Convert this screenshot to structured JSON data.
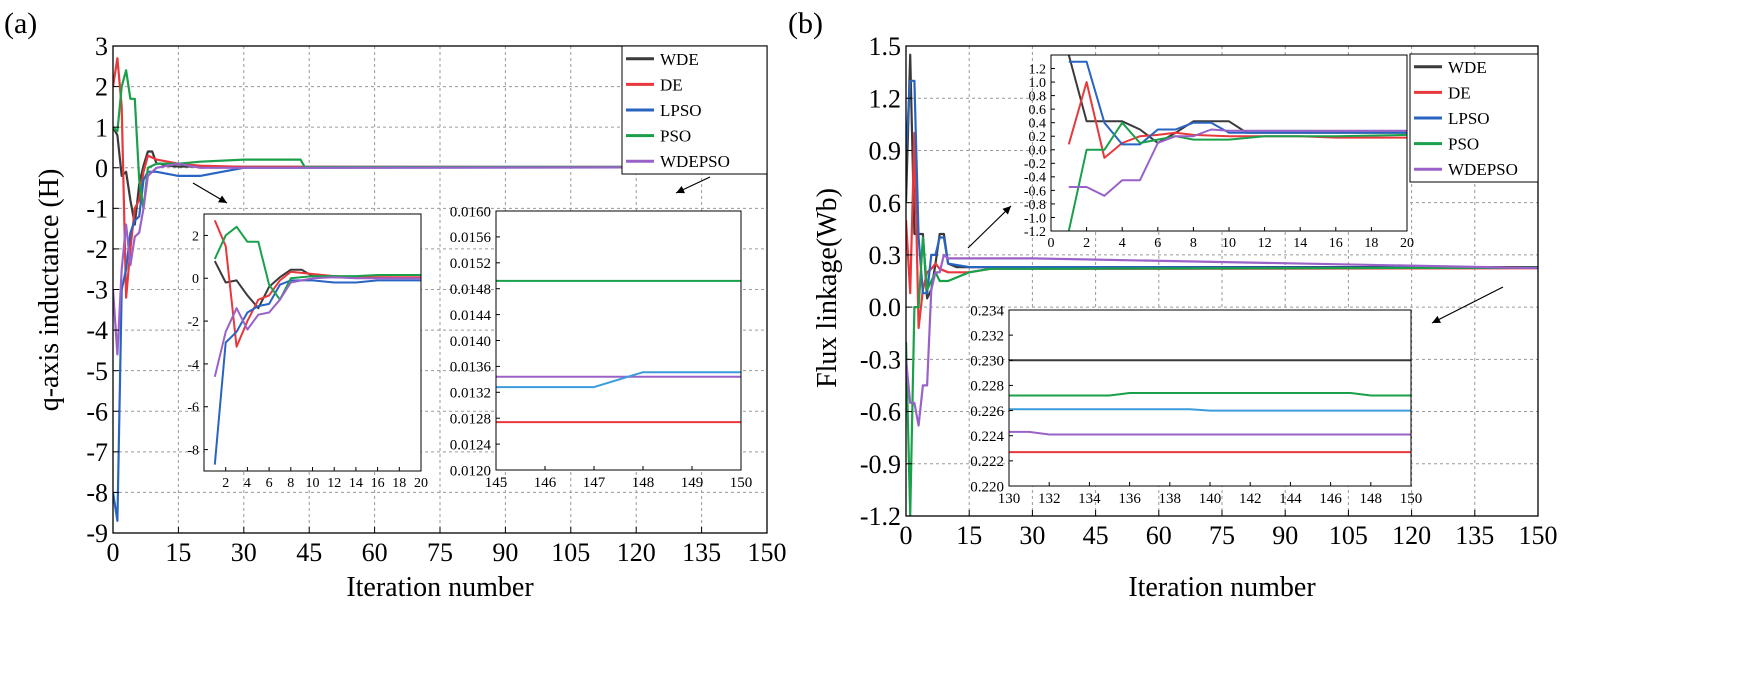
{
  "figure": {
    "colors": {
      "WDE": "#3a3a3a",
      "DE": "#e8383b",
      "LPSO": "#2a64c2",
      "PSO": "#1aa04a",
      "WDEPSO": "#9a62c8",
      "LPSO_inset": "#3b9cdb"
    }
  },
  "chart_data": [
    {
      "type": "line",
      "panel_label": "(a)",
      "xlabel": "Iteration number",
      "ylabel": "q-axis inductance (H)",
      "xlim": [
        0,
        150
      ],
      "ylim": [
        -9,
        3
      ],
      "xticks": [
        "0",
        "15",
        "30",
        "45",
        "60",
        "75",
        "90",
        "105",
        "120",
        "135",
        "150"
      ],
      "yticks": [
        "3",
        "2",
        "1",
        "0",
        "-1",
        "-2",
        "-3",
        "-4",
        "-5",
        "-6",
        "-7",
        "-8",
        "-9"
      ],
      "grid": true,
      "legend_position": "top-right",
      "series": [
        {
          "name": "WDE",
          "x": [
            0,
            1,
            2,
            3,
            4,
            5,
            6,
            7,
            8,
            9,
            10,
            11,
            12,
            15,
            20,
            30,
            150
          ],
          "y": [
            1.0,
            0.8,
            -0.2,
            -0.1,
            -0.8,
            -1.4,
            -0.4,
            0.05,
            0.4,
            0.4,
            0.1,
            0.1,
            0.05,
            0.03,
            0.03,
            0.02,
            0.02
          ]
        },
        {
          "name": "DE",
          "x": [
            0,
            1,
            2,
            3,
            4,
            5,
            6,
            7,
            8,
            10,
            15,
            20,
            30,
            150
          ],
          "y": [
            2.0,
            2.7,
            1.5,
            -3.2,
            -2.0,
            -1.0,
            -0.8,
            -0.1,
            0.3,
            0.2,
            0.1,
            0.05,
            0.02,
            0.013
          ]
        },
        {
          "name": "LPSO",
          "x": [
            0,
            1,
            2,
            3,
            4,
            5,
            6,
            7,
            8,
            10,
            15,
            20,
            25,
            30,
            40,
            150
          ],
          "y": [
            -8.0,
            -8.7,
            -3.0,
            -2.5,
            -1.6,
            -1.3,
            -1.2,
            -0.3,
            -0.1,
            -0.1,
            -0.2,
            -0.2,
            -0.1,
            0.0,
            0.0,
            0.013
          ]
        },
        {
          "name": "PSO",
          "x": [
            0,
            1,
            2,
            3,
            4,
            5,
            6,
            7,
            8,
            10,
            15,
            20,
            30,
            40,
            43,
            44,
            150
          ],
          "y": [
            1.0,
            0.9,
            2.0,
            2.4,
            1.7,
            1.7,
            -0.3,
            -1.0,
            0.0,
            0.1,
            0.1,
            0.15,
            0.2,
            0.2,
            0.2,
            0.015,
            0.015
          ]
        },
        {
          "name": "WDEPSO",
          "x": [
            0,
            1,
            2,
            3,
            4,
            5,
            6,
            7,
            8,
            9,
            10,
            15,
            20,
            30,
            150
          ],
          "y": [
            -3.0,
            -4.6,
            -2.5,
            -1.4,
            -2.4,
            -1.7,
            -1.6,
            -1.0,
            -0.2,
            -0.1,
            0.0,
            0.1,
            0.0,
            0.0,
            0.013
          ]
        }
      ],
      "insets": [
        {
          "xlim": [
            0,
            20
          ],
          "ylim": [
            -9,
            3
          ],
          "xticks": [
            "2",
            "4",
            "6",
            "8",
            "10",
            "12",
            "14",
            "16",
            "18",
            "20"
          ],
          "yticks": [
            "2",
            "0",
            "-2",
            "-4",
            "-6",
            "-8"
          ],
          "series": [
            {
              "name": "WDE",
              "x": [
                1,
                2,
                3,
                4,
                5,
                6,
                7,
                8,
                9,
                10,
                11,
                12,
                20
              ],
              "y": [
                0.8,
                -0.2,
                -0.1,
                -0.8,
                -1.4,
                -0.4,
                0.05,
                0.4,
                0.4,
                0.1,
                0.1,
                0.05,
                0.03
              ]
            },
            {
              "name": "DE",
              "x": [
                1,
                2,
                3,
                4,
                5,
                6,
                7,
                8,
                10,
                12,
                14,
                16,
                20
              ],
              "y": [
                2.7,
                1.5,
                -3.2,
                -2.0,
                -1.0,
                -0.8,
                -0.1,
                0.3,
                0.2,
                0.1,
                0.05,
                0.05,
                0.05
              ]
            },
            {
              "name": "LPSO",
              "x": [
                1,
                2,
                3,
                4,
                5,
                6,
                7,
                8,
                10,
                12,
                14,
                16,
                18,
                20
              ],
              "y": [
                -8.7,
                -3.0,
                -2.5,
                -1.6,
                -1.3,
                -1.2,
                -0.3,
                -0.1,
                -0.1,
                -0.2,
                -0.2,
                -0.1,
                -0.1,
                -0.1
              ]
            },
            {
              "name": "PSO",
              "x": [
                1,
                2,
                3,
                4,
                5,
                6,
                7,
                8,
                10,
                12,
                14,
                16,
                20
              ],
              "y": [
                0.9,
                2.0,
                2.4,
                1.7,
                1.7,
                -0.3,
                -1.0,
                0.0,
                0.1,
                0.1,
                0.1,
                0.15,
                0.15
              ]
            },
            {
              "name": "WDEPSO",
              "x": [
                1,
                2,
                3,
                4,
                5,
                6,
                7,
                8,
                9,
                10,
                12,
                14,
                16,
                20
              ],
              "y": [
                -4.6,
                -2.5,
                -1.4,
                -2.4,
                -1.7,
                -1.6,
                -1.0,
                -0.2,
                -0.1,
                0.0,
                0.05,
                0.0,
                0.0,
                0.0
              ]
            }
          ]
        },
        {
          "xlim": [
            145,
            150
          ],
          "ylim": [
            0.012,
            0.016
          ],
          "xticks": [
            "145",
            "146",
            "147",
            "148",
            "149",
            "150"
          ],
          "yticks": [
            "0.0160",
            "0.0156",
            "0.0152",
            "0.0148",
            "0.0144",
            "0.0140",
            "0.0136",
            "0.0132",
            "0.0128",
            "0.0124",
            "0.0120"
          ],
          "series": [
            {
              "name": "PSO",
              "x": [
                145,
                150
              ],
              "y": [
                0.01492,
                0.01492
              ]
            },
            {
              "name": "WDEPSO",
              "x": [
                145,
                150
              ],
              "y": [
                0.01344,
                0.01344
              ]
            },
            {
              "name": "LPSO",
              "x": [
                145,
                147,
                148,
                150
              ],
              "y": [
                0.01328,
                0.01328,
                0.01351,
                0.01351
              ]
            },
            {
              "name": "DE",
              "x": [
                145,
                150
              ],
              "y": [
                0.01274,
                0.01274
              ]
            }
          ]
        }
      ]
    },
    {
      "type": "line",
      "panel_label": "(b)",
      "xlabel": "Iteration number",
      "ylabel": "Flux linkage(Wb)",
      "xlim": [
        0,
        150
      ],
      "ylim": [
        -1.2,
        1.5
      ],
      "xticks": [
        "0",
        "15",
        "30",
        "45",
        "60",
        "75",
        "90",
        "105",
        "120",
        "135",
        "150"
      ],
      "yticks": [
        "1.5",
        "1.2",
        "0.9",
        "0.6",
        "0.3",
        "0.0",
        "-0.3",
        "-0.6",
        "-0.9",
        "-1.2"
      ],
      "grid": true,
      "legend_position": "top-right",
      "series": [
        {
          "name": "WDE",
          "x": [
            0,
            1,
            2,
            3,
            4,
            5,
            6,
            7,
            8,
            9,
            10,
            12,
            15,
            20,
            30,
            150
          ],
          "y": [
            0.6,
            1.45,
            0.42,
            0.42,
            0.42,
            0.05,
            0.1,
            0.25,
            0.42,
            0.42,
            0.25,
            0.23,
            0.23,
            0.23,
            0.23,
            0.23
          ]
        },
        {
          "name": "DE",
          "x": [
            0,
            1,
            2,
            3,
            4,
            5,
            6,
            7,
            8,
            10,
            15,
            20,
            30,
            40,
            150
          ],
          "y": [
            0.5,
            0.08,
            1.0,
            -0.12,
            0.1,
            0.2,
            0.22,
            0.25,
            0.22,
            0.2,
            0.2,
            0.22,
            0.22,
            0.22,
            0.223
          ]
        },
        {
          "name": "LPSO",
          "x": [
            0,
            1,
            2,
            3,
            4,
            5,
            6,
            7,
            8,
            9,
            10,
            15,
            20,
            30,
            150
          ],
          "y": [
            0.9,
            1.3,
            1.3,
            0.4,
            0.08,
            0.08,
            0.3,
            0.3,
            0.4,
            0.4,
            0.25,
            0.23,
            0.23,
            0.23,
            0.226
          ]
        },
        {
          "name": "PSO",
          "x": [
            0,
            1,
            2,
            3,
            4,
            5,
            6,
            7,
            8,
            10,
            15,
            20,
            30,
            150
          ],
          "y": [
            -0.2,
            -1.2,
            0.0,
            0.0,
            0.4,
            0.1,
            0.15,
            0.2,
            0.15,
            0.15,
            0.2,
            0.22,
            0.22,
            0.227
          ]
        },
        {
          "name": "WDEPSO",
          "x": [
            0,
            1,
            2,
            3,
            4,
            5,
            6,
            7,
            8,
            9,
            10,
            15,
            20,
            30,
            150
          ],
          "y": [
            -0.3,
            -0.55,
            -0.55,
            -0.68,
            -0.45,
            -0.45,
            0.1,
            0.2,
            0.2,
            0.3,
            0.28,
            0.28,
            0.28,
            0.28,
            0.224
          ]
        }
      ],
      "insets": [
        {
          "xlim": [
            0,
            20
          ],
          "ylim": [
            -1.2,
            1.4
          ],
          "xticks": [
            "0",
            "2",
            "4",
            "6",
            "8",
            "10",
            "12",
            "14",
            "16",
            "18",
            "20"
          ],
          "yticks": [
            "1.2",
            "1.0",
            "0.8",
            "0.6",
            "0.4",
            "0.2",
            "0.0",
            "-0.2",
            "-0.4",
            "-0.6",
            "-0.8",
            "-1.0",
            "-1.2"
          ],
          "series": [
            {
              "name": "WDE",
              "x": [
                1,
                2,
                3,
                4,
                5,
                6,
                7,
                8,
                9,
                10,
                11,
                12,
                20
              ],
              "y": [
                1.4,
                0.42,
                0.42,
                0.42,
                0.3,
                0.1,
                0.25,
                0.42,
                0.42,
                0.42,
                0.25,
                0.25,
                0.25
              ]
            },
            {
              "name": "DE",
              "x": [
                1,
                2,
                3,
                4,
                5,
                6,
                7,
                8,
                10,
                12,
                14,
                16,
                20
              ],
              "y": [
                0.08,
                1.0,
                -0.12,
                0.1,
                0.2,
                0.22,
                0.25,
                0.22,
                0.2,
                0.2,
                0.2,
                0.18,
                0.18
              ]
            },
            {
              "name": "LPSO",
              "x": [
                1,
                2,
                3,
                4,
                5,
                6,
                7,
                8,
                9,
                10,
                12,
                14,
                16,
                20
              ],
              "y": [
                1.3,
                1.3,
                0.4,
                0.08,
                0.08,
                0.3,
                0.3,
                0.4,
                0.4,
                0.25,
                0.25,
                0.25,
                0.25,
                0.25
              ]
            },
            {
              "name": "PSO",
              "x": [
                1,
                2,
                3,
                4,
                5,
                6,
                7,
                8,
                10,
                12,
                14,
                16,
                20
              ],
              "y": [
                -1.2,
                0.0,
                0.0,
                0.4,
                0.1,
                0.15,
                0.2,
                0.15,
                0.15,
                0.2,
                0.2,
                0.2,
                0.22
              ]
            },
            {
              "name": "WDEPSO",
              "x": [
                1,
                2,
                3,
                4,
                5,
                6,
                7,
                8,
                9,
                10,
                12,
                14,
                16,
                20
              ],
              "y": [
                -0.55,
                -0.55,
                -0.68,
                -0.45,
                -0.45,
                0.1,
                0.2,
                0.2,
                0.3,
                0.28,
                0.28,
                0.28,
                0.28,
                0.28
              ]
            }
          ]
        },
        {
          "xlim": [
            130,
            150
          ],
          "ylim": [
            0.22,
            0.234
          ],
          "xticks": [
            "130",
            "132",
            "134",
            "136",
            "138",
            "140",
            "142",
            "144",
            "146",
            "148",
            "150"
          ],
          "yticks": [
            "0.234",
            "0.232",
            "0.230",
            "0.228",
            "0.226",
            "0.224",
            "0.222",
            "0.220"
          ],
          "series": [
            {
              "name": "WDE",
              "x": [
                130,
                150
              ],
              "y": [
                0.23,
                0.23
              ]
            },
            {
              "name": "PSO",
              "x": [
                130,
                135,
                136,
                147,
                148,
                150
              ],
              "y": [
                0.2272,
                0.2272,
                0.2274,
                0.2274,
                0.2272,
                0.2272
              ]
            },
            {
              "name": "LPSO",
              "x": [
                130,
                139,
                140,
                150
              ],
              "y": [
                0.2261,
                0.2261,
                0.226,
                0.226
              ]
            },
            {
              "name": "WDEPSO",
              "x": [
                130,
                131,
                132,
                150
              ],
              "y": [
                0.2243,
                0.2243,
                0.2241,
                0.2241
              ]
            },
            {
              "name": "DE",
              "x": [
                130,
                150
              ],
              "y": [
                0.2227,
                0.2227
              ]
            }
          ]
        }
      ]
    }
  ]
}
